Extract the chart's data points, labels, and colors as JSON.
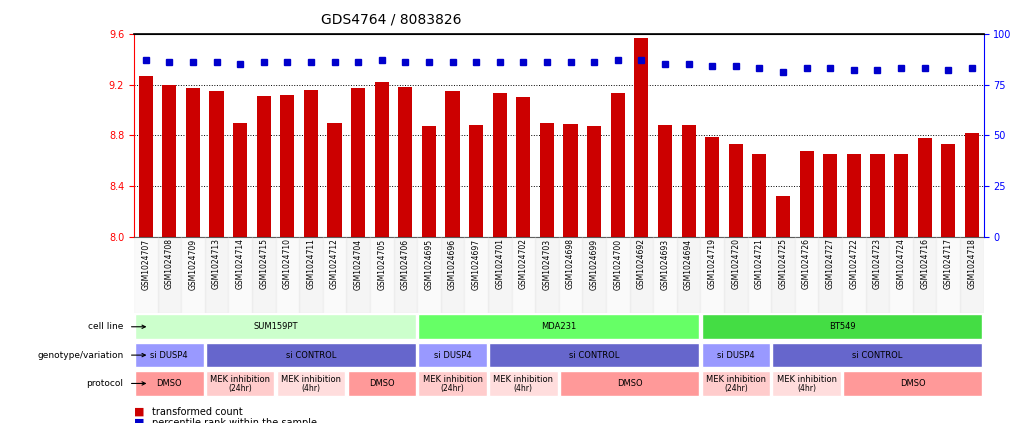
{
  "title": "GDS4764 / 8083826",
  "samples": [
    "GSM1024707",
    "GSM1024708",
    "GSM1024709",
    "GSM1024713",
    "GSM1024714",
    "GSM1024715",
    "GSM1024710",
    "GSM1024711",
    "GSM1024712",
    "GSM1024704",
    "GSM1024705",
    "GSM1024706",
    "GSM1024695",
    "GSM1024696",
    "GSM1024697",
    "GSM1024701",
    "GSM1024702",
    "GSM1024703",
    "GSM1024698",
    "GSM1024699",
    "GSM1024700",
    "GSM1024692",
    "GSM1024693",
    "GSM1024694",
    "GSM1024719",
    "GSM1024720",
    "GSM1024721",
    "GSM1024725",
    "GSM1024726",
    "GSM1024727",
    "GSM1024722",
    "GSM1024723",
    "GSM1024724",
    "GSM1024716",
    "GSM1024717",
    "GSM1024718"
  ],
  "bar_values": [
    9.27,
    9.2,
    9.17,
    9.15,
    8.9,
    9.11,
    9.12,
    9.16,
    8.9,
    9.17,
    9.22,
    9.18,
    8.87,
    9.15,
    8.88,
    9.13,
    9.1,
    8.9,
    8.89,
    8.87,
    9.13,
    9.57,
    8.88,
    8.88,
    8.79,
    8.73,
    8.65,
    8.32,
    8.68,
    8.65,
    8.65,
    8.65,
    8.65,
    8.78,
    8.73,
    8.82
  ],
  "percentile_values": [
    87,
    86,
    86,
    86,
    85,
    86,
    86,
    86,
    86,
    86,
    87,
    86,
    86,
    86,
    86,
    86,
    86,
    86,
    86,
    86,
    87,
    87,
    85,
    85,
    84,
    84,
    83,
    81,
    83,
    83,
    82,
    82,
    83,
    83,
    82,
    83
  ],
  "ylim_left": [
    8.0,
    9.6
  ],
  "ylim_right": [
    0,
    100
  ],
  "yticks_left": [
    8.0,
    8.4,
    8.8,
    9.2,
    9.6
  ],
  "yticks_right": [
    0,
    25,
    50,
    75,
    100
  ],
  "bar_color": "#cc0000",
  "dot_color": "#0000cc",
  "background_color": "#ffffff",
  "cell_line_groups": [
    {
      "label": "SUM159PT",
      "start": 0,
      "end": 12,
      "color": "#ccffcc"
    },
    {
      "label": "MDA231",
      "start": 12,
      "end": 24,
      "color": "#66ff66"
    },
    {
      "label": "BT549",
      "start": 24,
      "end": 36,
      "color": "#44dd44"
    }
  ],
  "genotype_groups": [
    {
      "label": "si DUSP4",
      "start": 0,
      "end": 3,
      "color": "#9999ff"
    },
    {
      "label": "si CONTROL",
      "start": 3,
      "end": 12,
      "color": "#6666cc"
    },
    {
      "label": "si DUSP4",
      "start": 12,
      "end": 15,
      "color": "#9999ff"
    },
    {
      "label": "si CONTROL",
      "start": 15,
      "end": 24,
      "color": "#6666cc"
    },
    {
      "label": "si DUSP4",
      "start": 24,
      "end": 27,
      "color": "#9999ff"
    },
    {
      "label": "si CONTROL",
      "start": 27,
      "end": 36,
      "color": "#6666cc"
    }
  ],
  "protocol_groups": [
    {
      "label": "DMSO",
      "start": 0,
      "end": 3,
      "color": "#ff9999"
    },
    {
      "label": "MEK inhibition\n(24hr)",
      "start": 3,
      "end": 6,
      "color": "#ffcccc"
    },
    {
      "label": "MEK inhibition\n(4hr)",
      "start": 6,
      "end": 9,
      "color": "#ffdddd"
    },
    {
      "label": "DMSO",
      "start": 9,
      "end": 12,
      "color": "#ff9999"
    },
    {
      "label": "MEK inhibition\n(24hr)",
      "start": 12,
      "end": 15,
      "color": "#ffcccc"
    },
    {
      "label": "MEK inhibition\n(4hr)",
      "start": 15,
      "end": 18,
      "color": "#ffdddd"
    },
    {
      "label": "DMSO",
      "start": 18,
      "end": 24,
      "color": "#ff9999"
    },
    {
      "label": "MEK inhibition\n(24hr)",
      "start": 24,
      "end": 27,
      "color": "#ffcccc"
    },
    {
      "label": "MEK inhibition\n(4hr)",
      "start": 27,
      "end": 30,
      "color": "#ffdddd"
    },
    {
      "label": "DMSO",
      "start": 30,
      "end": 36,
      "color": "#ff9999"
    }
  ],
  "row_labels": [
    "cell line",
    "genotype/variation",
    "protocol"
  ],
  "legend_items": [
    {
      "label": "transformed count",
      "color": "#cc0000",
      "marker": "s"
    },
    {
      "label": "percentile rank within the sample",
      "color": "#0000cc",
      "marker": "s"
    }
  ]
}
